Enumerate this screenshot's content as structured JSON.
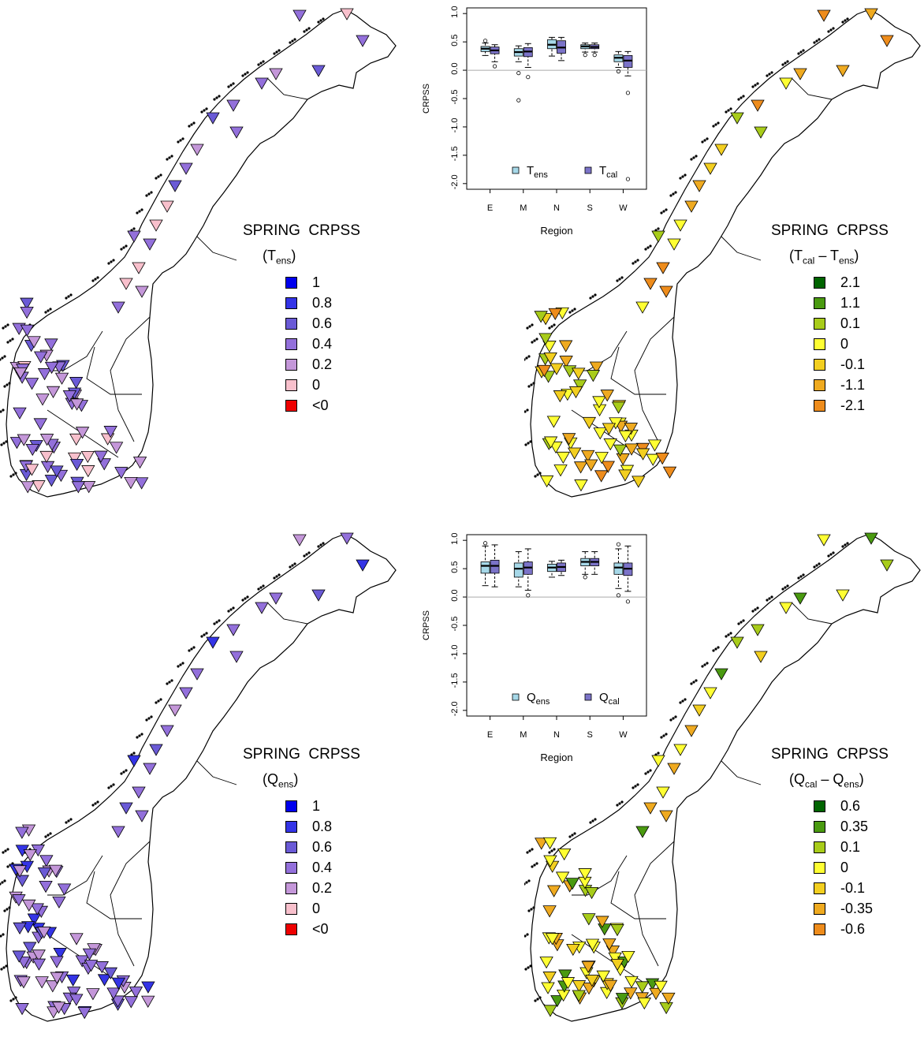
{
  "panels": [
    {
      "legend": {
        "title": "SPRING  CRPSS",
        "sub_main": "T",
        "sub_sub": "ens",
        "items": [
          {
            "label": "1",
            "color": "#0000ee"
          },
          {
            "label": "0.8",
            "color": "#3434e6"
          },
          {
            "label": "0.6",
            "color": "#6a5ad6"
          },
          {
            "label": "0.4",
            "color": "#9370db"
          },
          {
            "label": "0.2",
            "color": "#c497d9"
          },
          {
            "label": "0",
            "color": "#f8c0cc"
          },
          {
            "label": "<0",
            "color": "#ee0000"
          }
        ]
      }
    },
    {
      "legend": {
        "title": "SPRING  CRPSS",
        "sub_main": "T",
        "sub_sub": "cal",
        "sub_main2": "T",
        "sub_sub2": "ens",
        "items": [
          {
            "label": "2.1",
            "color": "#006400"
          },
          {
            "label": "1.1",
            "color": "#4a9a10"
          },
          {
            "label": "0.1",
            "color": "#a8cc1a"
          },
          {
            "label": "0",
            "color": "#ffff33"
          },
          {
            "label": "-0.1",
            "color": "#f3cf20"
          },
          {
            "label": "-1.1",
            "color": "#efaa20"
          },
          {
            "label": "-2.1",
            "color": "#ee8c1c"
          }
        ]
      }
    },
    {
      "legend": {
        "title": "SPRING  CRPSS",
        "sub_main": "Q",
        "sub_sub": "ens",
        "items": [
          {
            "label": "1",
            "color": "#0000ee"
          },
          {
            "label": "0.8",
            "color": "#3434e6"
          },
          {
            "label": "0.6",
            "color": "#6a5ad6"
          },
          {
            "label": "0.4",
            "color": "#9370db"
          },
          {
            "label": "0.2",
            "color": "#c497d9"
          },
          {
            "label": "0",
            "color": "#f8c0cc"
          },
          {
            "label": "<0",
            "color": "#ee0000"
          }
        ]
      }
    },
    {
      "legend": {
        "title": "SPRING  CRPSS",
        "sub_main": "Q",
        "sub_sub": "cal",
        "sub_main2": "Q",
        "sub_sub2": "ens",
        "items": [
          {
            "label": "0.6",
            "color": "#006400"
          },
          {
            "label": "0.35",
            "color": "#4a9a10"
          },
          {
            "label": "0.1",
            "color": "#a8cc1a"
          },
          {
            "label": "0",
            "color": "#ffff33"
          },
          {
            "label": "-0.1",
            "color": "#f3cf20"
          },
          {
            "label": "-0.35",
            "color": "#efaa20"
          },
          {
            "label": "-0.6",
            "color": "#ee8c1c"
          }
        ]
      }
    }
  ],
  "chart_data": [
    {
      "type": "box",
      "ylabel": "CRPSS",
      "xlabel": "Region",
      "categories": [
        "E",
        "M",
        "N",
        "S",
        "W"
      ],
      "yticks": [
        "1.0",
        "0.5",
        "0.0",
        "-0.5",
        "-1.0",
        "-1.5",
        "-2.0"
      ],
      "ylim": [
        -2.1,
        1.1
      ],
      "reference_line": 0,
      "legend": {
        "placement": "bottom",
        "items": [
          {
            "main": "T",
            "sub": "ens",
            "color": "#a6d8e8"
          },
          {
            "main": "T",
            "sub": "cal",
            "color": "#7b73c8"
          }
        ]
      },
      "series": [
        {
          "color": "#a6d8e8",
          "boxes": [
            {
              "q1": 0.33,
              "median": 0.38,
              "q3": 0.42,
              "lo": 0.26,
              "hi": 0.48,
              "outliers": [
                0.52
              ]
            },
            {
              "q1": 0.25,
              "median": 0.32,
              "q3": 0.38,
              "lo": 0.15,
              "hi": 0.43,
              "outliers": [
                -0.05,
                -0.53
              ]
            },
            {
              "q1": 0.38,
              "median": 0.45,
              "q3": 0.54,
              "lo": 0.25,
              "hi": 0.58,
              "outliers": []
            },
            {
              "q1": 0.38,
              "median": 0.42,
              "q3": 0.45,
              "lo": 0.32,
              "hi": 0.48,
              "outliers": [
                0.27
              ]
            },
            {
              "q1": 0.15,
              "median": 0.22,
              "q3": 0.27,
              "lo": 0.05,
              "hi": 0.33,
              "outliers": [
                -0.02
              ]
            }
          ]
        },
        {
          "color": "#7b73c8",
          "boxes": [
            {
              "q1": 0.29,
              "median": 0.35,
              "q3": 0.41,
              "lo": 0.15,
              "hi": 0.45,
              "outliers": [
                0.07
              ]
            },
            {
              "q1": 0.24,
              "median": 0.33,
              "q3": 0.4,
              "lo": 0.05,
              "hi": 0.47,
              "outliers": [
                -0.12
              ]
            },
            {
              "q1": 0.3,
              "median": 0.4,
              "q3": 0.52,
              "lo": 0.17,
              "hi": 0.58,
              "outliers": []
            },
            {
              "q1": 0.38,
              "median": 0.41,
              "q3": 0.45,
              "lo": 0.32,
              "hi": 0.48,
              "outliers": [
                0.27
              ]
            },
            {
              "q1": 0.05,
              "median": 0.17,
              "q3": 0.26,
              "lo": -0.1,
              "hi": 0.33,
              "outliers": [
                -0.4,
                -1.92
              ]
            }
          ]
        }
      ]
    },
    {
      "type": "box",
      "ylabel": "CRPSS",
      "xlabel": "Region",
      "categories": [
        "E",
        "M",
        "N",
        "S",
        "W"
      ],
      "yticks": [
        "1.0",
        "0.5",
        "0.0",
        "-0.5",
        "-1.0",
        "-1.5",
        "-2.0"
      ],
      "ylim": [
        -2.1,
        1.1
      ],
      "reference_line": 0,
      "legend": {
        "placement": "bottom",
        "items": [
          {
            "main": "Q",
            "sub": "ens",
            "color": "#a6d8e8"
          },
          {
            "main": "Q",
            "sub": "cal",
            "color": "#7b73c8"
          }
        ]
      },
      "series": [
        {
          "color": "#a6d8e8",
          "boxes": [
            {
              "q1": 0.42,
              "median": 0.55,
              "q3": 0.62,
              "lo": 0.2,
              "hi": 0.9,
              "outliers": [
                0.95
              ]
            },
            {
              "q1": 0.35,
              "median": 0.5,
              "q3": 0.6,
              "lo": 0.18,
              "hi": 0.8,
              "outliers": []
            },
            {
              "q1": 0.45,
              "median": 0.52,
              "q3": 0.58,
              "lo": 0.35,
              "hi": 0.63,
              "outliers": []
            },
            {
              "q1": 0.55,
              "median": 0.62,
              "q3": 0.68,
              "lo": 0.4,
              "hi": 0.8,
              "outliers": [
                0.35
              ]
            },
            {
              "q1": 0.4,
              "median": 0.52,
              "q3": 0.6,
              "lo": 0.15,
              "hi": 0.85,
              "outliers": [
                0.93,
                0.03
              ]
            }
          ]
        },
        {
          "color": "#7b73c8",
          "boxes": [
            {
              "q1": 0.42,
              "median": 0.55,
              "q3": 0.65,
              "lo": 0.18,
              "hi": 0.92,
              "outliers": []
            },
            {
              "q1": 0.4,
              "median": 0.52,
              "q3": 0.62,
              "lo": 0.12,
              "hi": 0.85,
              "outliers": [
                0.03
              ]
            },
            {
              "q1": 0.45,
              "median": 0.53,
              "q3": 0.6,
              "lo": 0.38,
              "hi": 0.65,
              "outliers": []
            },
            {
              "q1": 0.55,
              "median": 0.62,
              "q3": 0.68,
              "lo": 0.4,
              "hi": 0.8,
              "outliers": []
            },
            {
              "q1": 0.38,
              "median": 0.5,
              "q3": 0.6,
              "lo": 0.1,
              "hi": 0.9,
              "outliers": [
                -0.08
              ]
            }
          ]
        }
      ]
    }
  ]
}
